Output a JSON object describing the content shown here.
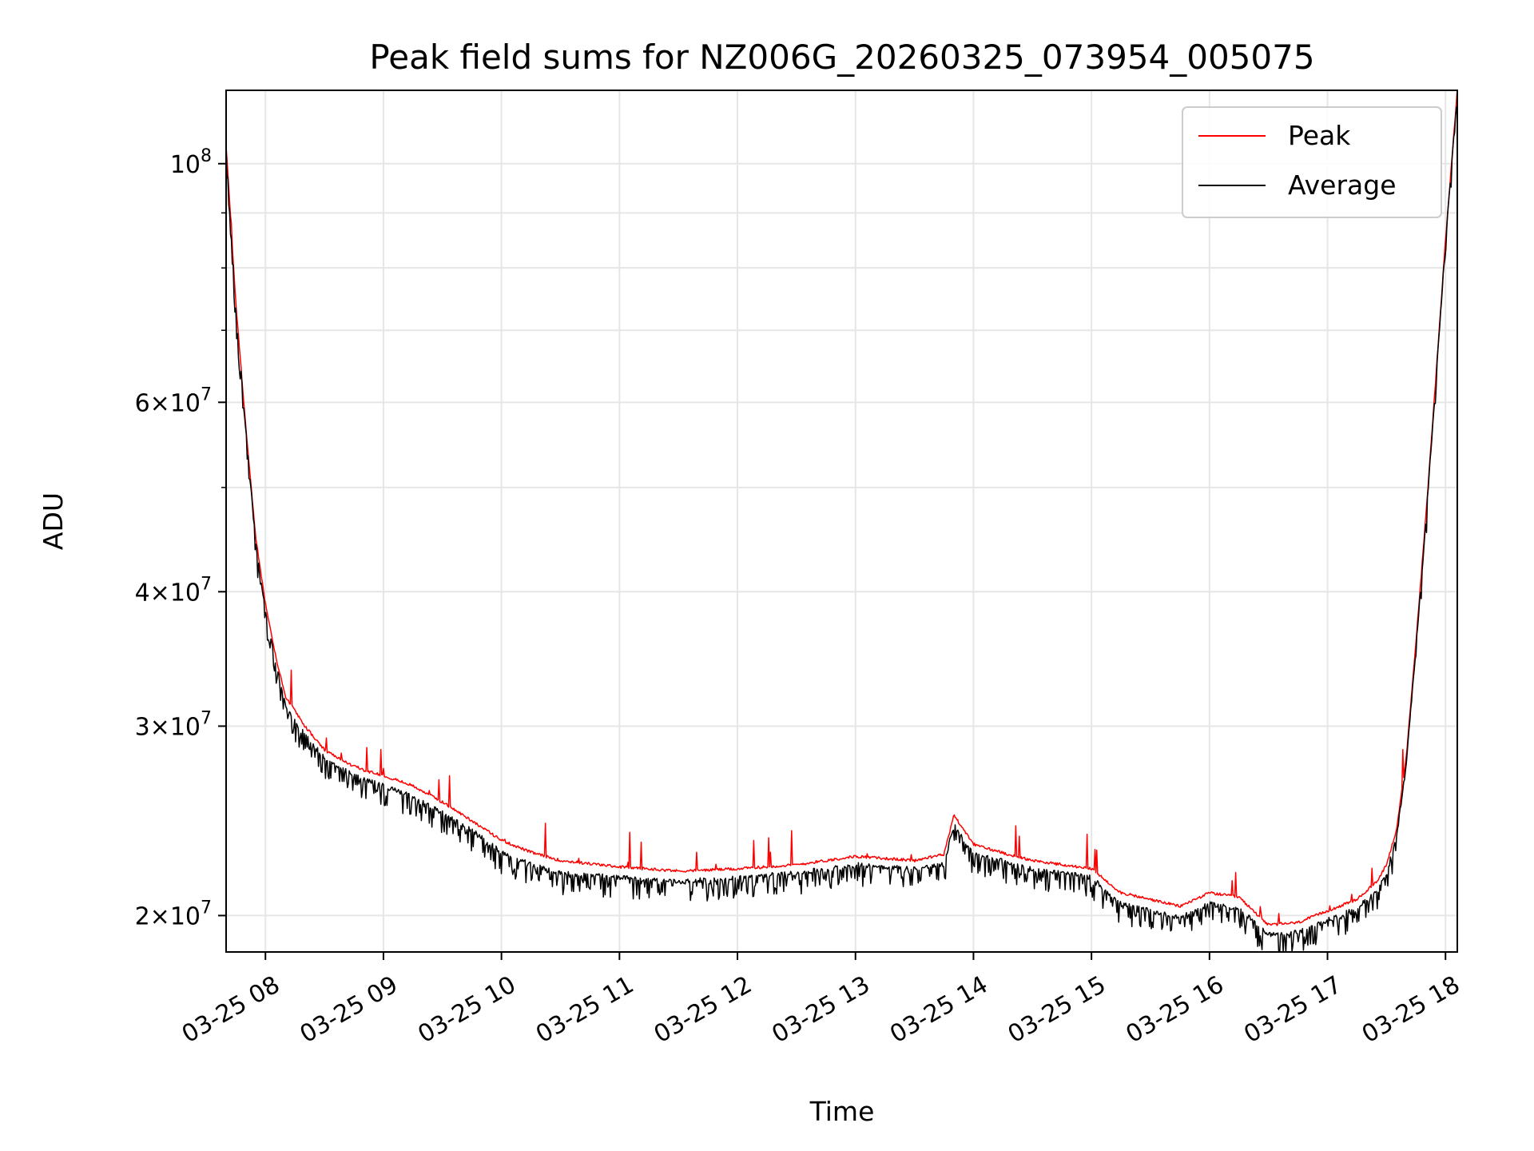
{
  "chart_data": {
    "type": "line",
    "title": "Peak field sums for NZ006G_20260325_073954_005075",
    "xlabel": "Time",
    "ylabel": "ADU",
    "yscale": "log",
    "xlim": [
      "03-25 07:40",
      "03-25 18:06"
    ],
    "ylim": [
      18500000,
      117000000
    ],
    "x_ticks": [
      "03-25 08",
      "03-25 09",
      "03-25 10",
      "03-25 11",
      "03-25 12",
      "03-25 13",
      "03-25 14",
      "03-25 15",
      "03-25 16",
      "03-25 17",
      "03-25 18"
    ],
    "y_ticks": [
      {
        "value": 100000000,
        "mantissa": "",
        "exp": "8"
      },
      {
        "value": 60000000,
        "mantissa": "6",
        "exp": "7"
      },
      {
        "value": 40000000,
        "mantissa": "4",
        "exp": "7"
      },
      {
        "value": 30000000,
        "mantissa": "3",
        "exp": "7"
      },
      {
        "value": 20000000,
        "mantissa": "2",
        "exp": "7"
      }
    ],
    "grid": true,
    "legend_position": "top-right",
    "series": [
      {
        "name": "Peak",
        "color": "#ff0000",
        "x": [
          "03-25 07:40",
          "03-25 07:45",
          "03-25 07:50",
          "03-25 07:55",
          "03-25 08:00",
          "03-25 08:05",
          "03-25 08:10",
          "03-25 08:15",
          "03-25 08:20",
          "03-25 08:30",
          "03-25 08:40",
          "03-25 08:50",
          "03-25 09:00",
          "03-25 09:15",
          "03-25 09:30",
          "03-25 09:45",
          "03-25 10:00",
          "03-25 10:15",
          "03-25 10:30",
          "03-25 11:00",
          "03-25 11:30",
          "03-25 12:00",
          "03-25 12:30",
          "03-25 13:00",
          "03-25 13:30",
          "03-25 13:45",
          "03-25 13:50",
          "03-25 14:00",
          "03-25 14:10",
          "03-25 14:30",
          "03-25 15:00",
          "03-25 15:15",
          "03-25 15:30",
          "03-25 15:45",
          "03-25 16:00",
          "03-25 16:15",
          "03-25 16:30",
          "03-25 16:45",
          "03-25 17:00",
          "03-25 17:15",
          "03-25 17:25",
          "03-25 17:30",
          "03-25 17:35",
          "03-25 17:40",
          "03-25 17:45",
          "03-25 17:50",
          "03-25 17:55",
          "03-25 18:00",
          "03-25 18:06"
        ],
        "values": [
          104000000,
          74000000,
          57000000,
          45000000,
          39000000,
          35000000,
          32000000,
          31000000,
          30000000,
          28500000,
          27800000,
          27300000,
          27000000,
          26400000,
          25500000,
          24500000,
          23500000,
          22900000,
          22500000,
          22200000,
          22000000,
          22100000,
          22300000,
          22700000,
          22500000,
          22800000,
          24800000,
          23300000,
          23000000,
          22500000,
          22100000,
          21000000,
          20700000,
          20400000,
          21000000,
          20800000,
          19600000,
          19700000,
          20200000,
          20700000,
          21500000,
          22300000,
          24000000,
          28000000,
          36000000,
          47000000,
          63000000,
          85000000,
          117000000
        ]
      },
      {
        "name": "Average",
        "color": "#000000",
        "x": [
          "03-25 07:40",
          "03-25 07:45",
          "03-25 07:50",
          "03-25 07:55",
          "03-25 08:00",
          "03-25 08:05",
          "03-25 08:10",
          "03-25 08:15",
          "03-25 08:20",
          "03-25 08:30",
          "03-25 08:40",
          "03-25 08:50",
          "03-25 09:00",
          "03-25 09:15",
          "03-25 09:30",
          "03-25 09:45",
          "03-25 10:00",
          "03-25 10:15",
          "03-25 10:30",
          "03-25 11:00",
          "03-25 11:30",
          "03-25 12:00",
          "03-25 12:30",
          "03-25 13:00",
          "03-25 13:30",
          "03-25 13:45",
          "03-25 13:50",
          "03-25 14:00",
          "03-25 14:10",
          "03-25 14:30",
          "03-25 15:00",
          "03-25 15:15",
          "03-25 15:30",
          "03-25 15:45",
          "03-25 16:00",
          "03-25 16:15",
          "03-25 16:30",
          "03-25 16:45",
          "03-25 17:00",
          "03-25 17:15",
          "03-25 17:25",
          "03-25 17:30",
          "03-25 17:35",
          "03-25 17:40",
          "03-25 17:45",
          "03-25 17:50",
          "03-25 17:55",
          "03-25 18:00",
          "03-25 18:06"
        ],
        "values": [
          103000000,
          73000000,
          56500000,
          44500000,
          38500000,
          34500000,
          31500000,
          30300000,
          29500000,
          28000000,
          27300000,
          26800000,
          26400000,
          25800000,
          24900000,
          24000000,
          22900000,
          22300000,
          21900000,
          21700000,
          21500000,
          21700000,
          21900000,
          22300000,
          22100000,
          22300000,
          24300000,
          22800000,
          22600000,
          22100000,
          21700000,
          20500000,
          20200000,
          19900000,
          20500000,
          20300000,
          19200000,
          19300000,
          19800000,
          20300000,
          21100000,
          21900000,
          23600000,
          27600000,
          35500000,
          46500000,
          62500000,
          84500000,
          116000000
        ]
      }
    ]
  }
}
